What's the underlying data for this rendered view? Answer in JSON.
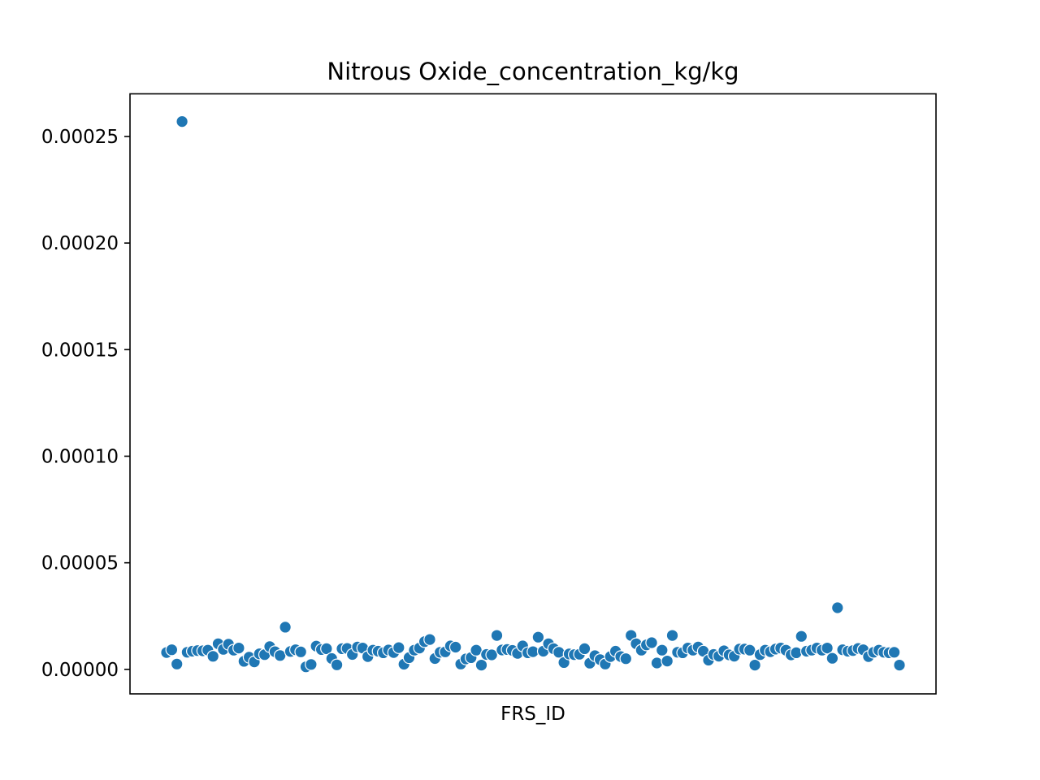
{
  "chart_data": {
    "type": "scatter",
    "title": "Nitrous Oxide_concentration_kg/kg",
    "xlabel": "FRS_ID",
    "ylabel": "",
    "ylim": [
      -1.15e-05,
      0.00027
    ],
    "y_ticks": [
      "0.00000",
      "0.00005",
      "0.00010",
      "0.00015",
      "0.00020",
      "0.00025"
    ],
    "y_tick_values": [
      0,
      5e-05,
      0.0001,
      0.00015,
      0.0002,
      0.00025
    ],
    "x_ticks_shown": false,
    "grid": false,
    "legend": "none",
    "marker_color": "#1f77b4",
    "series": [
      {
        "values": [
          7.9e-06,
          9.2e-06,
          2.5e-06,
          8e-06,
          8.5e-06,
          8.8e-06,
          8.7e-06,
          9e-06,
          6.1e-06,
          1.2e-05,
          9.4e-06,
          1.18e-05,
          9e-06,
          1e-05,
          3.8e-06,
          5.7e-06,
          3.5e-06,
          7.3e-06,
          6.9e-06,
          1.07e-05,
          8.3e-06,
          6.5e-06,
          1.98e-05,
          8.4e-06,
          9.2e-06,
          8.2e-06,
          1.2e-06,
          2.3e-06,
          1.09e-05,
          9.3e-06,
          9.7e-06,
          5.1e-06,
          2.1e-06,
          9.7e-06,
          9.8e-06,
          7e-06,
          1.05e-05,
          1e-05,
          6e-06,
          9e-06,
          8.5e-06,
          7.8e-06,
          9.1e-06,
          7.9e-06,
          1.02e-05,
          2.4e-06,
          5.5e-06,
          9e-06,
          1e-05,
          1.3e-05,
          1.4e-05,
          5.1e-06,
          8e-06,
          8.2e-06,
          1.1e-05,
          1.04e-05,
          2.5e-06,
          4.9e-06,
          5.5e-06,
          9e-06,
          2e-06,
          7e-06,
          6.8e-06,
          1.59e-05,
          9.1e-06,
          9.3e-06,
          8.9e-06,
          7.5e-06,
          1.1e-05,
          7.8e-06,
          8.3e-06,
          1.51e-05,
          8.5e-06,
          1.2e-05,
          9.7e-06,
          8e-06,
          3.2e-06,
          7.2e-06,
          6.9e-06,
          7.1e-06,
          9.7e-06,
          2.9e-06,
          6.4e-06,
          4.6e-06,
          2.5e-06,
          6e-06,
          8.5e-06,
          6e-06,
          5e-06,
          1.59e-05,
          1.2e-05,
          9e-06,
          1.15e-05,
          1.25e-05,
          3e-06,
          9e-06,
          3.9e-06,
          1.59e-05,
          8e-06,
          7.8e-06,
          1e-05,
          9e-06,
          1.05e-05,
          8.5e-06,
          4.3e-06,
          7e-06,
          6.2e-06,
          8.7e-06,
          6.8e-06,
          6.2e-06,
          9.5e-06,
          9.5e-06,
          9e-06,
          2e-06,
          6.9e-06,
          9e-06,
          8.3e-06,
          9.5e-06,
          1e-05,
          9e-06,
          6.8e-06,
          7.8e-06,
          1.55e-05,
          8.5e-06,
          9e-06,
          1e-05,
          9e-06,
          1e-05,
          5.2e-06,
          2.89e-05,
          9.2e-06,
          8.5e-06,
          8.8e-06,
          9.8e-06,
          9.2e-06,
          6e-06,
          8e-06,
          9e-06,
          8e-06,
          7.8e-06,
          8e-06,
          2e-06
        ]
      }
    ],
    "outlier": {
      "index": 3,
      "value": 0.000257
    }
  }
}
